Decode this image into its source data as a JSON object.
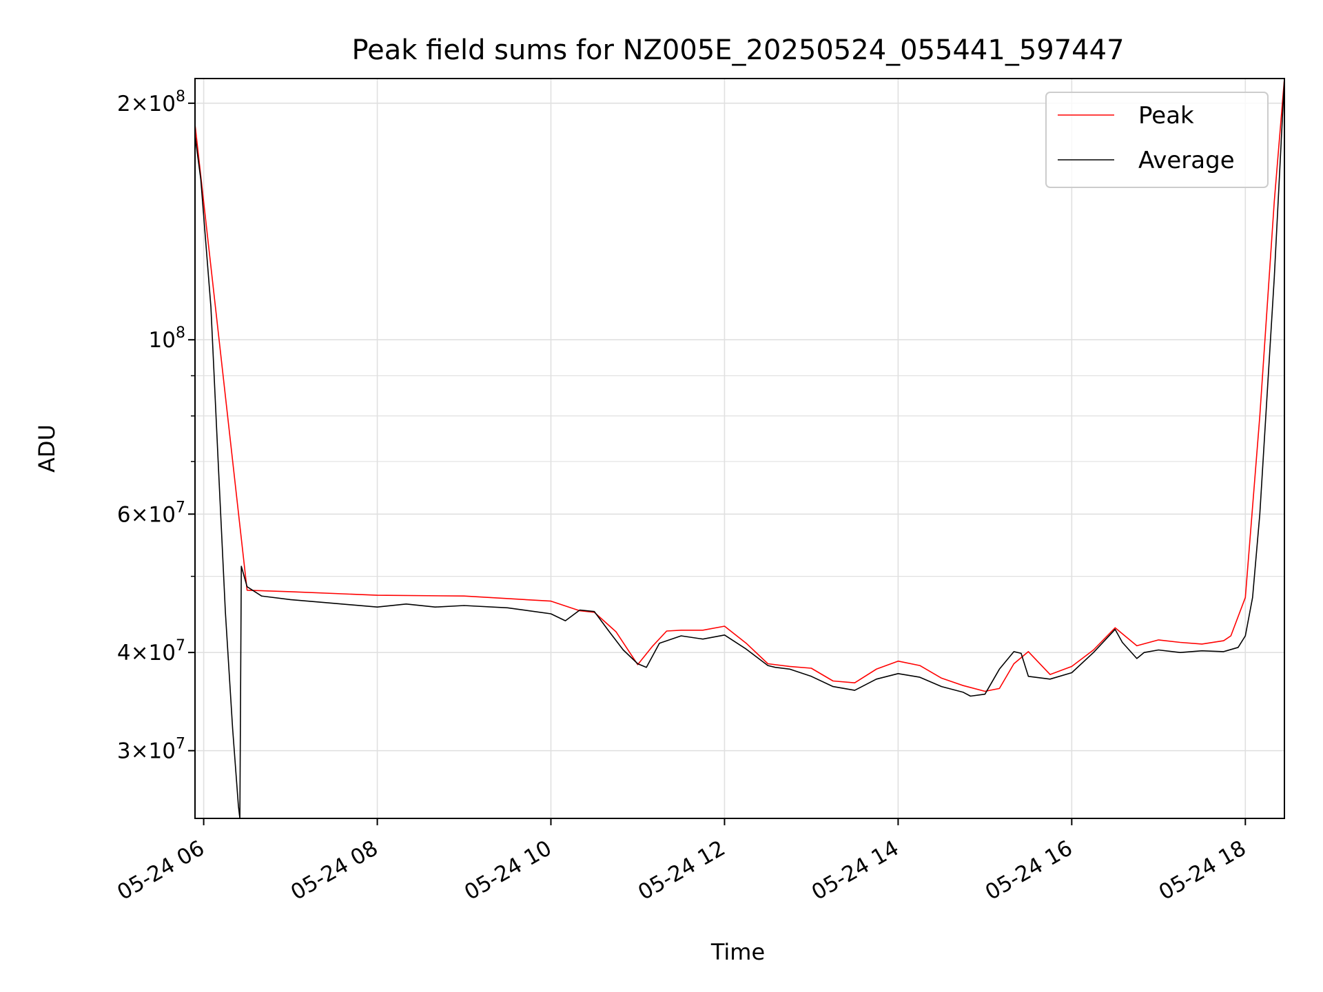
{
  "chart_data": {
    "type": "line",
    "title": "Peak field sums for NZ005E_20250524_055441_597447",
    "xlabel": "Time",
    "ylabel": "ADU",
    "y_scale": "log",
    "x_range": [
      "2025-05-24 05:54",
      "2025-05-24 18:27"
    ],
    "ylim": [
      24600000,
      215000000
    ],
    "grid": true,
    "legend_position": "top-right",
    "x_ticks": [
      {
        "t": "2025-05-24 06:00",
        "label": "05-24 06"
      },
      {
        "t": "2025-05-24 08:00",
        "label": "05-24 08"
      },
      {
        "t": "2025-05-24 10:00",
        "label": "05-24 10"
      },
      {
        "t": "2025-05-24 12:00",
        "label": "05-24 12"
      },
      {
        "t": "2025-05-24 14:00",
        "label": "05-24 14"
      },
      {
        "t": "2025-05-24 16:00",
        "label": "05-24 16"
      },
      {
        "t": "2025-05-24 18:00",
        "label": "05-24 18"
      }
    ],
    "y_ticks": [
      {
        "value": 30000000,
        "mantissa": "3",
        "exponent": "7"
      },
      {
        "value": 40000000,
        "mantissa": "4",
        "exponent": "7"
      },
      {
        "value": 60000000,
        "mantissa": "6",
        "exponent": "7"
      },
      {
        "value": 100000000,
        "mantissa": "",
        "exponent": "8"
      },
      {
        "value": 200000000,
        "mantissa": "2",
        "exponent": "8"
      }
    ],
    "y_minor_ticks": [
      50000000,
      70000000,
      80000000,
      90000000
    ],
    "series": [
      {
        "name": "Peak",
        "color": "#ff0000",
        "x": [
          "2025-05-24 05:54",
          "2025-05-24 06:30",
          "2025-05-24 07:00",
          "2025-05-24 08:00",
          "2025-05-24 09:00",
          "2025-05-24 10:00",
          "2025-05-24 10:20",
          "2025-05-24 10:30",
          "2025-05-24 10:45",
          "2025-05-24 11:00",
          "2025-05-24 11:10",
          "2025-05-24 11:20",
          "2025-05-24 11:30",
          "2025-05-24 11:45",
          "2025-05-24 12:00",
          "2025-05-24 12:15",
          "2025-05-24 12:30",
          "2025-05-24 12:45",
          "2025-05-24 13:00",
          "2025-05-24 13:15",
          "2025-05-24 13:30",
          "2025-05-24 13:45",
          "2025-05-24 14:00",
          "2025-05-24 14:15",
          "2025-05-24 14:30",
          "2025-05-24 14:45",
          "2025-05-24 15:00",
          "2025-05-24 15:10",
          "2025-05-24 15:20",
          "2025-05-24 15:30",
          "2025-05-24 15:45",
          "2025-05-24 16:00",
          "2025-05-24 16:15",
          "2025-05-24 16:30",
          "2025-05-24 16:45",
          "2025-05-24 17:00",
          "2025-05-24 17:15",
          "2025-05-24 17:30",
          "2025-05-24 17:45",
          "2025-05-24 17:50",
          "2025-05-24 18:00",
          "2025-05-24 18:10",
          "2025-05-24 18:20",
          "2025-05-24 18:27"
        ],
        "values": [
          188000000,
          48000000,
          47800000,
          47300000,
          47200000,
          46500000,
          45200000,
          45000000,
          42500000,
          38600000,
          40700000,
          42600000,
          42700000,
          42700000,
          43200000,
          41100000,
          38700000,
          38400000,
          38200000,
          36800000,
          36600000,
          38100000,
          39000000,
          38500000,
          37100000,
          36300000,
          35700000,
          36000000,
          38700000,
          40100000,
          37500000,
          38400000,
          40300000,
          43000000,
          40800000,
          41500000,
          41200000,
          41000000,
          41400000,
          42000000,
          47000000,
          80000000,
          150000000,
          215000000
        ]
      },
      {
        "name": "Average",
        "color": "#000000",
        "x": [
          "2025-05-24 05:54",
          "2025-05-24 05:58",
          "2025-05-24 06:05",
          "2025-05-24 06:10",
          "2025-05-24 06:15",
          "2025-05-24 06:20",
          "2025-05-24 06:24",
          "2025-05-24 06:25",
          "2025-05-24 06:26",
          "2025-05-24 06:30",
          "2025-05-24 06:40",
          "2025-05-24 07:00",
          "2025-05-24 07:30",
          "2025-05-24 08:00",
          "2025-05-24 08:20",
          "2025-05-24 08:40",
          "2025-05-24 09:00",
          "2025-05-24 09:30",
          "2025-05-24 10:00",
          "2025-05-24 10:10",
          "2025-05-24 10:20",
          "2025-05-24 10:30",
          "2025-05-24 10:40",
          "2025-05-24 10:50",
          "2025-05-24 11:00",
          "2025-05-24 11:06",
          "2025-05-24 11:15",
          "2025-05-24 11:30",
          "2025-05-24 11:45",
          "2025-05-24 12:00",
          "2025-05-24 12:15",
          "2025-05-24 12:30",
          "2025-05-24 12:35",
          "2025-05-24 12:45",
          "2025-05-24 13:00",
          "2025-05-24 13:15",
          "2025-05-24 13:30",
          "2025-05-24 13:45",
          "2025-05-24 14:00",
          "2025-05-24 14:15",
          "2025-05-24 14:30",
          "2025-05-24 14:45",
          "2025-05-24 14:50",
          "2025-05-24 15:00",
          "2025-05-24 15:10",
          "2025-05-24 15:20",
          "2025-05-24 15:25",
          "2025-05-24 15:30",
          "2025-05-24 15:45",
          "2025-05-24 16:00",
          "2025-05-24 16:15",
          "2025-05-24 16:30",
          "2025-05-24 16:35",
          "2025-05-24 16:45",
          "2025-05-24 16:50",
          "2025-05-24 17:00",
          "2025-05-24 17:15",
          "2025-05-24 17:30",
          "2025-05-24 17:45",
          "2025-05-24 17:55",
          "2025-05-24 18:00",
          "2025-05-24 18:05",
          "2025-05-24 18:10",
          "2025-05-24 18:20",
          "2025-05-24 18:27"
        ],
        "values": [
          182000000,
          160000000,
          110000000,
          70000000,
          45000000,
          32000000,
          25500000,
          24600000,
          51500000,
          48500000,
          47200000,
          46700000,
          46200000,
          45700000,
          46100000,
          45700000,
          45900000,
          45600000,
          44800000,
          43900000,
          45300000,
          45100000,
          42600000,
          40300000,
          38700000,
          38300000,
          41100000,
          42000000,
          41600000,
          42100000,
          40400000,
          38500000,
          38300000,
          38100000,
          37300000,
          36200000,
          35800000,
          37000000,
          37600000,
          37200000,
          36200000,
          35600000,
          35200000,
          35400000,
          38100000,
          40100000,
          39900000,
          37300000,
          37000000,
          37700000,
          40000000,
          42800000,
          41200000,
          39300000,
          40000000,
          40300000,
          40000000,
          40200000,
          40100000,
          40600000,
          42000000,
          47000000,
          60000000,
          120000000,
          215000000
        ]
      }
    ],
    "legend": [
      {
        "label": "Peak",
        "color": "#ff0000"
      },
      {
        "label": "Average",
        "color": "#000000"
      }
    ]
  }
}
